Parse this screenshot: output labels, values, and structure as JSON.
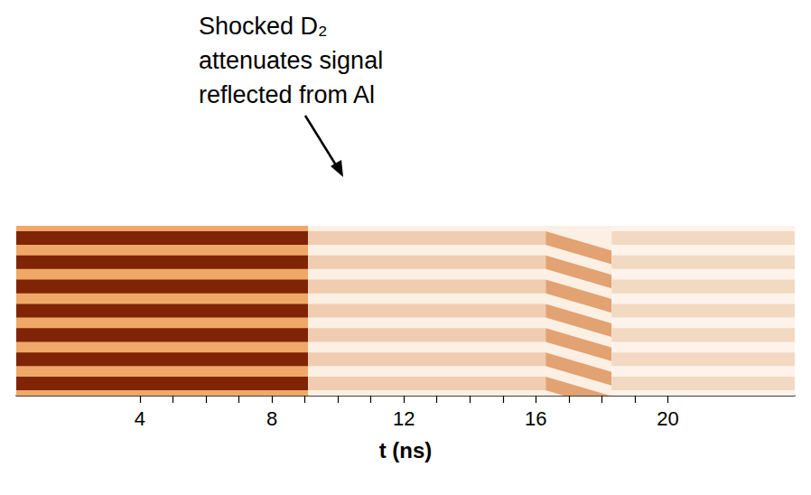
{
  "chart_data": {
    "type": "streak",
    "x_label": "t (ns)",
    "xlim": [
      0.25,
      23.85
    ],
    "xticks": [
      4,
      8,
      12,
      16,
      20
    ],
    "fringes": 7,
    "annotation": "Shocked D₂ attenuates signal reflected from Al",
    "segments": [
      {
        "t_start": 0.25,
        "t_end": 9.1,
        "ground_color": "#f0a868",
        "fringe_color": "#7f2506",
        "slant": false
      },
      {
        "t_start": 9.1,
        "t_end": 16.3,
        "ground_color": "#fcefe3",
        "fringe_color": "#f0cdb0",
        "slant": false
      },
      {
        "t_start": 16.3,
        "t_end": 18.3,
        "ground_color": "#fcefe3",
        "fringe_color": "#e2a272",
        "slant": true
      },
      {
        "t_start": 18.3,
        "t_end": 23.85,
        "ground_color": "#fdf3ea",
        "fringe_color": "#f2d9c2",
        "slant": false
      }
    ]
  }
}
